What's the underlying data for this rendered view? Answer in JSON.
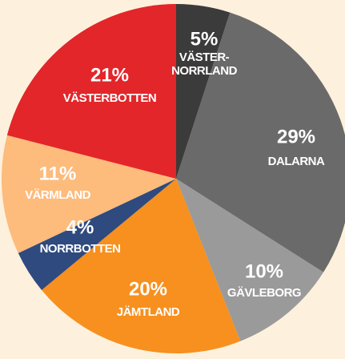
{
  "chart_data": {
    "type": "pie",
    "categories": [
      "VÄSTER-NORRLAND",
      "DALARNA",
      "GÄVLEBORG",
      "JÄMTLAND",
      "NORRBOTTEN",
      "VÄRMLAND",
      "VÄSTERBOTTEN"
    ],
    "values": [
      5,
      29,
      10,
      20,
      4,
      11,
      21
    ],
    "value_labels": [
      "5%",
      "29%",
      "10%",
      "20%",
      "4%",
      "11%",
      "21%"
    ],
    "colors": [
      "#3b3b3b",
      "#6a6a6a",
      "#9a9a9a",
      "#f7901e",
      "#2f4a7e",
      "#fdbb7c",
      "#e2262a"
    ]
  }
}
